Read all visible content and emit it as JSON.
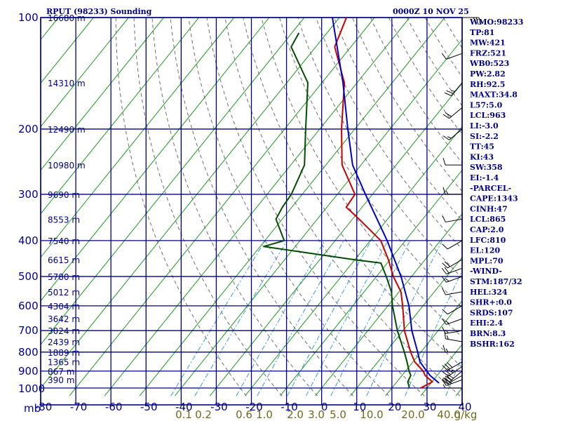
{
  "header": {
    "station": "RPUT (98233) Sounding",
    "time": "0000Z 10 NOV 25"
  },
  "axes": {
    "pressure_unit": "mb",
    "mixing_ratio_unit": "g/kg"
  },
  "colors": {
    "frame": "#00008b",
    "isotherm": "#1c9a1c",
    "dry_adiabat": "#6e6e6e",
    "mixing_ratio": "#3a9ad9",
    "temperature": "#c80000",
    "dewpoint": "#004d00",
    "parcel": "#0000c8",
    "mr_label": "#6b6b20"
  },
  "stats": [
    "WMO:98233",
    "TP:81",
    "MW:421",
    "FRZ:521",
    "WB0:523",
    "PW:2.82",
    "RH:92.5",
    "MAXT:34.8",
    "L57:5.0",
    "LCL:963",
    "LI:-3.0",
    "SI:-2.2",
    "TT:45",
    "KI:43",
    "SW:358",
    "EI:-1.4",
    "-PARCEL-",
    "CAPE:1343",
    "CINH:47",
    "LCL:865",
    "CAP:2.0",
    "LFC:810",
    "EL:120",
    "MPL:70",
    "-WIND-",
    "STM:187/32",
    "HEL:324",
    "SHR+:0.0",
    "SRDS:107",
    "EHI:2.4",
    "BRN:8.3",
    "BSHR:162"
  ],
  "chart_data": {
    "type": "line",
    "subtype": "skew-T log-P",
    "x_range": [
      -80,
      40
    ],
    "p_range": [
      1050,
      100
    ],
    "grid": true,
    "pressure_levels": [
      100,
      200,
      300,
      400,
      500,
      600,
      700,
      800,
      900,
      1000
    ],
    "temperature_ticks": [
      -80,
      -70,
      -60,
      -50,
      -40,
      -30,
      -20,
      -10,
      0,
      10,
      20,
      30,
      40
    ],
    "height_labels": [
      {
        "p": 100,
        "label": "16680 m"
      },
      {
        "p": 150,
        "label": "14310 m"
      },
      {
        "p": 200,
        "label": "12490 m"
      },
      {
        "p": 250,
        "label": "10980 m"
      },
      {
        "p": 300,
        "label": "9690 m"
      },
      {
        "p": 350,
        "label": "8553 m"
      },
      {
        "p": 400,
        "label": "7540 m"
      },
      {
        "p": 450,
        "label": "6615 m"
      },
      {
        "p": 500,
        "label": "5780 m"
      },
      {
        "p": 550,
        "label": "5012 m"
      },
      {
        "p": 600,
        "label": "4304 m"
      },
      {
        "p": 650,
        "label": "3642 m"
      },
      {
        "p": 700,
        "label": "3024 m"
      },
      {
        "p": 750,
        "label": "2439 m"
      },
      {
        "p": 800,
        "label": "1889 m"
      },
      {
        "p": 850,
        "label": "1365 m"
      },
      {
        "p": 900,
        "label": "867 m"
      },
      {
        "p": 950,
        "label": "390 m"
      }
    ],
    "mixing_ratio_labels": [
      "0.1",
      "0.2",
      "0.6",
      "1.0",
      "2.0",
      "3.0",
      "5.0",
      "10.0",
      "20.0",
      "40.0"
    ],
    "mixing_ratio_values": [
      0.1,
      0.2,
      0.6,
      1.0,
      2.0,
      3.0,
      5.0,
      10.0,
      20.0,
      40.0
    ],
    "series": [
      {
        "key": "temperature",
        "points": [
          [
            1000,
            28.2
          ],
          [
            962,
            30.1
          ],
          [
            925,
            26.6
          ],
          [
            900,
            25.0
          ],
          [
            850,
            20.5
          ],
          [
            800,
            17.1
          ],
          [
            700,
            10.4
          ],
          [
            600,
            4.2
          ],
          [
            550,
            0.5
          ],
          [
            500,
            -5.2
          ],
          [
            450,
            -10.5
          ],
          [
            400,
            -17.0
          ],
          [
            350,
            -28.1
          ],
          [
            325,
            -34.5
          ],
          [
            300,
            -35.0
          ],
          [
            250,
            -45.4
          ],
          [
            200,
            -53.8
          ],
          [
            150,
            -63.6
          ],
          [
            120,
            -74.6
          ],
          [
            100,
            -78.0
          ]
        ]
      },
      {
        "key": "dewpoint",
        "points": [
          [
            1000,
            25.0
          ],
          [
            962,
            23.1
          ],
          [
            925,
            22.5
          ],
          [
            900,
            21.0
          ],
          [
            850,
            18.3
          ],
          [
            800,
            15.3
          ],
          [
            700,
            8.4
          ],
          [
            600,
            1.3
          ],
          [
            550,
            -2.2
          ],
          [
            500,
            -7.2
          ],
          [
            460,
            -11.8
          ],
          [
            450,
            -20.5
          ],
          [
            415,
            -49.0
          ],
          [
            400,
            -44.5
          ],
          [
            350,
            -51.8
          ],
          [
            325,
            -52.7
          ],
          [
            300,
            -53.1
          ],
          [
            250,
            -56.1
          ],
          [
            200,
            -64.0
          ],
          [
            150,
            -74.0
          ],
          [
            120,
            -87.0
          ],
          [
            110,
            -88.0
          ]
        ]
      },
      {
        "key": "parcel",
        "points": [
          [
            970,
            32.3
          ],
          [
            925,
            28.0
          ],
          [
            900,
            26.0
          ],
          [
            850,
            22.0
          ],
          [
            800,
            19.1
          ],
          [
            700,
            12.5
          ],
          [
            600,
            6.0
          ],
          [
            500,
            -3.0
          ],
          [
            400,
            -15.2
          ],
          [
            300,
            -32.0
          ],
          [
            250,
            -42.4
          ],
          [
            200,
            -52.0
          ],
          [
            150,
            -64.0
          ],
          [
            100,
            -82.0
          ]
        ]
      }
    ],
    "winds": [
      {
        "p": 1000,
        "dir": 270,
        "spd": 5
      },
      {
        "p": 950,
        "dir": 250,
        "spd": 25
      },
      {
        "p": 925,
        "dir": 240,
        "spd": 30
      },
      {
        "p": 900,
        "dir": 230,
        "spd": 30
      },
      {
        "p": 875,
        "dir": 235,
        "spd": 35
      },
      {
        "p": 850,
        "dir": 240,
        "spd": 30
      },
      {
        "p": 800,
        "dir": 270,
        "spd": 15
      },
      {
        "p": 750,
        "dir": 280,
        "spd": 15
      },
      {
        "p": 700,
        "dir": 260,
        "spd": 15
      },
      {
        "p": 650,
        "dir": 250,
        "spd": 15
      },
      {
        "p": 600,
        "dir": 240,
        "spd": 10
      },
      {
        "p": 550,
        "dir": 260,
        "spd": 10
      },
      {
        "p": 500,
        "dir": 250,
        "spd": 15
      },
      {
        "p": 475,
        "dir": 250,
        "spd": 20
      },
      {
        "p": 450,
        "dir": 240,
        "spd": 20
      },
      {
        "p": 400,
        "dir": 240,
        "spd": 10
      },
      {
        "p": 350,
        "dir": 260,
        "spd": 10
      },
      {
        "p": 300,
        "dir": 270,
        "spd": 15
      },
      {
        "p": 250,
        "dir": 270,
        "spd": 10
      },
      {
        "p": 200,
        "dir": 230,
        "spd": 15
      },
      {
        "p": 175,
        "dir": 230,
        "spd": 20
      },
      {
        "p": 150,
        "dir": 220,
        "spd": 25
      },
      {
        "p": 125,
        "dir": 250,
        "spd": 10
      },
      {
        "p": 100,
        "dir": 90,
        "spd": 25
      }
    ]
  }
}
